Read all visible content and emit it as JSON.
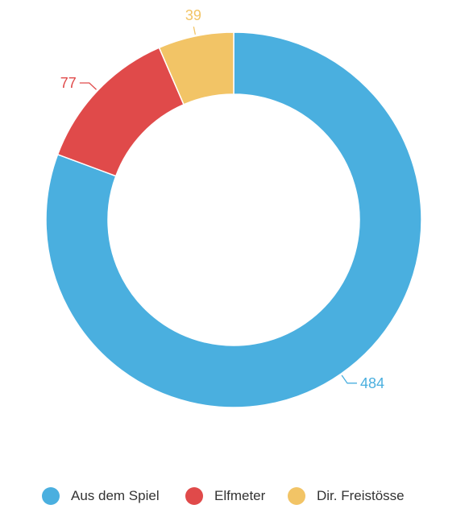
{
  "chart_data": {
    "type": "pie",
    "donut": true,
    "series": [
      {
        "name": "Aus dem Spiel",
        "value": 484,
        "color": "#4aafdf"
      },
      {
        "name": "Elfmeter",
        "value": 77,
        "color": "#e04a4a"
      },
      {
        "name": "Dir. Freistösse",
        "value": 39,
        "color": "#f2c466"
      }
    ],
    "data_labels": [
      "484",
      "77",
      "39"
    ],
    "legend": {
      "position": "bottom"
    }
  }
}
